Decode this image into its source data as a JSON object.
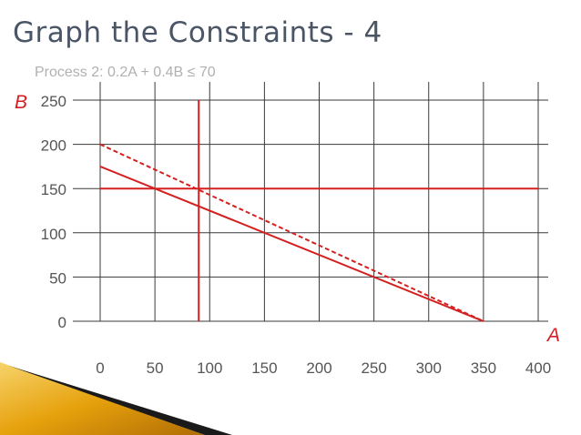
{
  "slide": {
    "title": "Graph the Constraints - 4",
    "subtitle": "Process 2: 0.2A + 0.4B ≤ 70"
  },
  "colors": {
    "title": "#4a5566",
    "constraint": "#d42020",
    "grid": "#3a3a3a",
    "banner_gold": "#e6a10c",
    "banner_dark": "#1a1a1a"
  },
  "chart_data": {
    "type": "line",
    "title": "",
    "xlabel": "A",
    "ylabel": "B",
    "xlim": [
      0,
      400
    ],
    "ylim": [
      0,
      250
    ],
    "x_ticks": [
      "0",
      "50",
      "100",
      "150",
      "200",
      "250",
      "300",
      "350",
      "400"
    ],
    "y_ticks": [
      "0",
      "50",
      "100",
      "150",
      "200",
      "250"
    ],
    "grid": true,
    "series": [
      {
        "style": "solid",
        "x": [
          0,
          350
        ],
        "y": [
          175,
          0
        ]
      },
      {
        "style": "dashed",
        "x": [
          0,
          350
        ],
        "y": [
          200,
          0
        ]
      },
      {
        "style": "solid",
        "x": [
          0,
          400
        ],
        "y": [
          150,
          150
        ]
      },
      {
        "style": "solid",
        "x": [
          90,
          90
        ],
        "y": [
          0,
          250
        ]
      }
    ]
  }
}
